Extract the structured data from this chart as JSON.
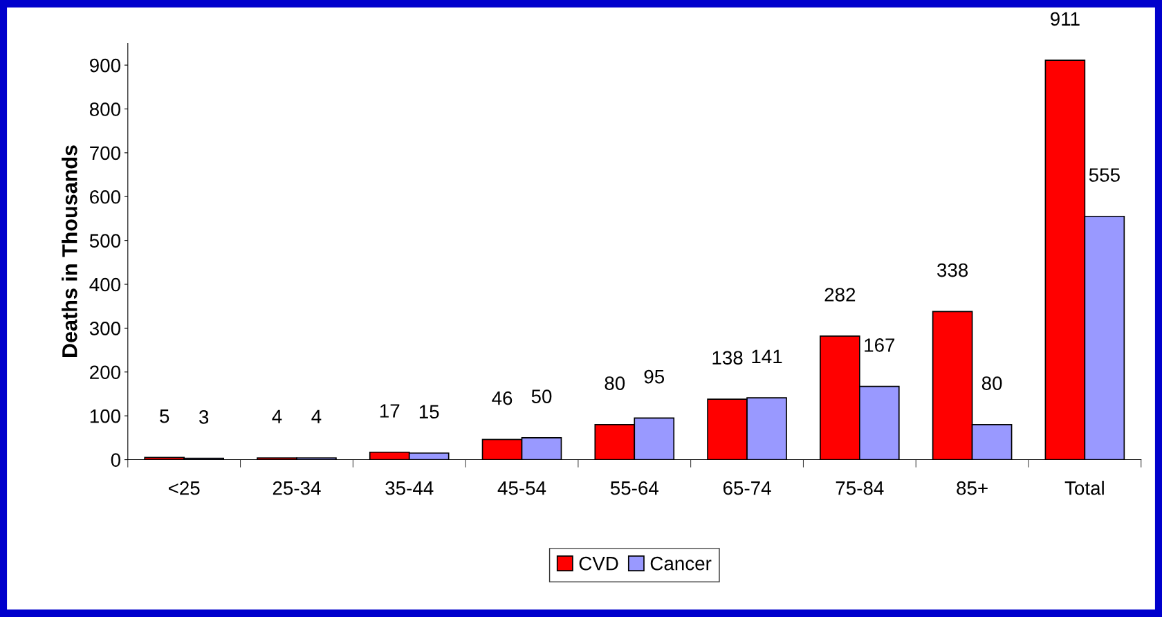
{
  "chart_data": {
    "type": "bar",
    "ylabel": "Deaths in Thousands",
    "categories": [
      "<25",
      "25-34",
      "35-44",
      "45-54",
      "55-64",
      "65-74",
      "75-84",
      "85+",
      "Total"
    ],
    "series": [
      {
        "name": "CVD",
        "color": "#ff0000",
        "values": [
          5,
          4,
          17,
          46,
          80,
          138,
          282,
          338,
          911
        ]
      },
      {
        "name": "Cancer",
        "color": "#9999ff",
        "values": [
          3,
          4,
          15,
          50,
          95,
          141,
          167,
          80,
          555
        ]
      }
    ],
    "ylim": [
      0,
      950
    ],
    "yticks": [
      0,
      100,
      200,
      300,
      400,
      500,
      600,
      700,
      800,
      900
    ],
    "grid": false,
    "legend": "bottom",
    "data_labels": true
  }
}
